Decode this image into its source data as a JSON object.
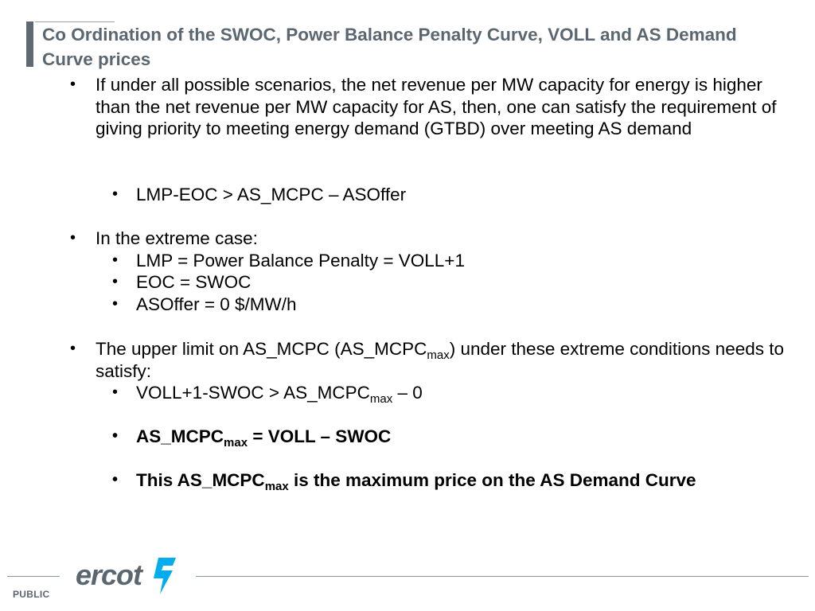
{
  "title": "Co Ordination of the SWOC, Power Balance Penalty Curve, VOLL and AS Demand Curve prices",
  "bullet_char": "•",
  "bullets": {
    "b1": "If under all possible scenarios, the net revenue per MW capacity for energy is higher than the net revenue per MW capacity for AS, then, one can satisfy the requirement of giving priority to meeting energy demand (GTBD) over meeting AS demand",
    "b1_sub1": "LMP-EOC > AS_MCPC – ASOffer",
    "b2": "In the extreme case:",
    "b2_sub1": "LMP = Power Balance Penalty = VOLL+1",
    "b2_sub2": "EOC = SWOC",
    "b2_sub3": "ASOffer = 0 $/MW/h",
    "b3_pre": "The upper limit on AS_MCPC (AS_MCPC",
    "b3_sub": "max",
    "b3_post": ") under these extreme conditions needs to satisfy:",
    "b3_sub1_pre": "VOLL+1-SWOC > AS_MCPC",
    "b3_sub1_sub": "max",
    "b3_sub1_post": " – 0",
    "b3_sub2_pre": "AS_MCPC",
    "b3_sub2_sub": "max",
    "b3_sub2_post": " = VOLL – SWOC",
    "b3_sub3_pre": "This AS_MCPC",
    "b3_sub3_sub": "max",
    "b3_sub3_post": " is the maximum price on the AS Demand Curve"
  },
  "footer": {
    "label": "PUBLIC",
    "logo_text": "ercot",
    "logo_icon": "texas-lightning-icon"
  },
  "colors": {
    "title": "#5b6770",
    "logo_gray": "#5b6770",
    "logo_teal": "#00aeef"
  }
}
